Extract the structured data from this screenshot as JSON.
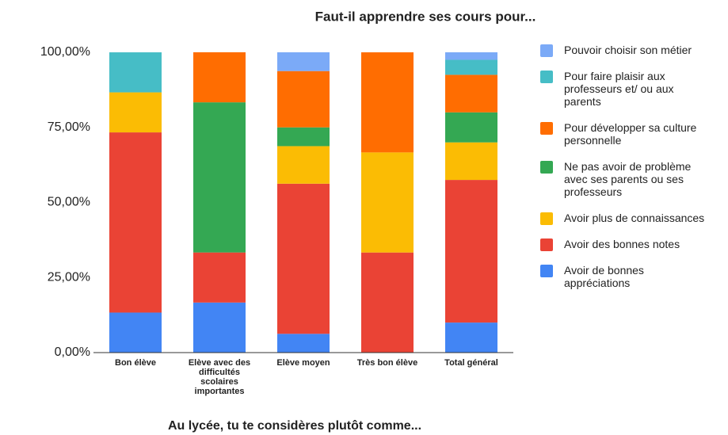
{
  "chart_data": {
    "type": "stacked_bar",
    "title": "Faut-il apprendre ses cours pour...",
    "x_label": "Au lycée, tu te considères plutôt comme...",
    "categories": [
      "Bon élève",
      "Elève avec des difficultés scolaires importantes",
      "Elève moyen",
      "Très bon élève",
      "Total général"
    ],
    "series": [
      {
        "name": "Avoir de bonnes appréciations",
        "color": "#4285f4",
        "values": [
          13.33,
          16.67,
          6.25,
          0,
          10
        ]
      },
      {
        "name": "Avoir des bonnes notes",
        "color": "#ea4335",
        "values": [
          60,
          16.67,
          50,
          33.33,
          47.5
        ]
      },
      {
        "name": "Avoir plus de connaissances",
        "color": "#fbbc04",
        "values": [
          13.33,
          0,
          12.5,
          33.33,
          12.5
        ]
      },
      {
        "name": "Ne pas avoir de problème avec ses parents ou ses professeurs",
        "color": "#34a853",
        "values": [
          0,
          50,
          6.25,
          0,
          10
        ]
      },
      {
        "name": "Pour développer sa culture personnelle",
        "color": "#ff6d01",
        "values": [
          0,
          16.67,
          18.75,
          33.33,
          12.5
        ]
      },
      {
        "name": "Pour faire plaisir aux professeurs et/ ou aux parents",
        "color": "#46bdc6",
        "values": [
          13.33,
          0,
          0,
          0,
          5
        ]
      },
      {
        "name": "Pouvoir choisir son métier",
        "color": "#7baaf7",
        "values": [
          0,
          0,
          6.25,
          0,
          2.5
        ]
      }
    ],
    "ylim": [
      0,
      100
    ],
    "yticks": [
      {
        "value": 0,
        "label": "0,00%"
      },
      {
        "value": 25,
        "label": "25,00%"
      },
      {
        "value": 50,
        "label": "50,00%"
      },
      {
        "value": 75,
        "label": "75,00%"
      },
      {
        "value": 100,
        "label": "100,00%"
      }
    ],
    "grid": false,
    "legend": "right"
  }
}
